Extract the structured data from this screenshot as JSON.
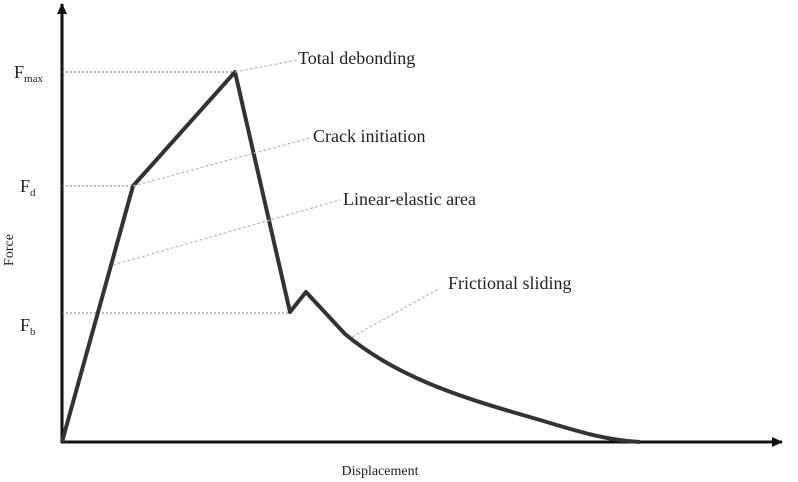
{
  "diagram": {
    "axes": {
      "y_title": "Force",
      "x_title": "Displacement"
    },
    "levels": [
      {
        "symbol": "F",
        "subscript": "max"
      },
      {
        "symbol": "F",
        "subscript": "d"
      },
      {
        "symbol": "F",
        "subscript": "b"
      }
    ],
    "annotations": [
      "Total debonding",
      "Crack initiation",
      "Linear-elastic area",
      "Frictional sliding"
    ]
  }
}
